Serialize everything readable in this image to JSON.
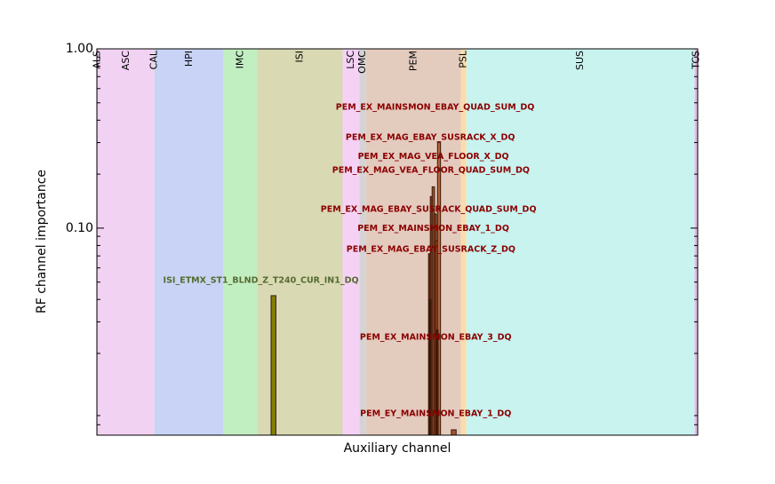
{
  "chart_data": {
    "type": "bar",
    "title": "",
    "xlabel": "Auxiliary channel",
    "ylabel": "RF channel importance",
    "y_scale": "log",
    "ylim": [
      0.007,
      1.0
    ],
    "yticks": [
      {
        "value": 1.0,
        "label": "1.00"
      },
      {
        "value": 0.1,
        "label": "0.10"
      }
    ],
    "xlim": [
      0,
      1000
    ],
    "subsystems": [
      {
        "label": "ALS",
        "start": 0,
        "end": 2,
        "color": "#e6b8e6"
      },
      {
        "label": "ASC",
        "start": 2,
        "end": 95,
        "color": "#f2d2f2"
      },
      {
        "label": "CAL",
        "start": 95,
        "end": 96,
        "color": "#dddddd"
      },
      {
        "label": "HPI",
        "start": 96,
        "end": 211,
        "color": "#c8d3f5"
      },
      {
        "label": "IMC",
        "start": 211,
        "end": 267,
        "color": "#c2efc2"
      },
      {
        "label": "ISI",
        "start": 267,
        "end": 409,
        "color": "#d9d9b3"
      },
      {
        "label": "LSC",
        "start": 409,
        "end": 437,
        "color": "#f5d2f5"
      },
      {
        "label": "OMC",
        "start": 437,
        "end": 448,
        "color": "#d4d4d4"
      },
      {
        "label": "PEM",
        "start": 448,
        "end": 606,
        "color": "#e3cbbe"
      },
      {
        "label": "PSL",
        "start": 606,
        "end": 615,
        "color": "#fbdcaa"
      },
      {
        "label": "SUS",
        "start": 615,
        "end": 995,
        "color": "#c8f3ef"
      },
      {
        "label": "TCS",
        "start": 995,
        "end": 1000,
        "color": "#e6b8e6"
      }
    ],
    "bars": [
      {
        "x": 290,
        "width": 8,
        "value": 0.042,
        "color": "#808000"
      },
      {
        "x": 552,
        "width": 4,
        "value": 0.072,
        "color": "#6b2a10"
      },
      {
        "x": 555,
        "width": 4,
        "value": 0.15,
        "color": "#8b3a1a"
      },
      {
        "x": 558,
        "width": 4,
        "value": 0.17,
        "color": "#a0522d"
      },
      {
        "x": 561,
        "width": 4,
        "value": 0.12,
        "color": "#8b3a1a"
      },
      {
        "x": 564,
        "width": 4,
        "value": 0.085,
        "color": "#a0522d"
      },
      {
        "x": 567,
        "width": 5,
        "value": 0.3,
        "color": "#b5663a"
      },
      {
        "x": 565,
        "width": 3,
        "value": 0.027,
        "color": "#4a1a08"
      },
      {
        "x": 553,
        "width": 3,
        "value": 0.04,
        "color": "#3a1405"
      },
      {
        "x": 590,
        "width": 8,
        "value": 0.0075,
        "color": "#a0522d"
      }
    ],
    "annotations": [
      {
        "text": "PEM_EX_MAINSMON_EBAY_QUAD_SUM_DQ",
        "x": 563,
        "y": 0.47,
        "color": "#8b0000"
      },
      {
        "text": "PEM_EX_MAG_EBAY_SUSRACK_X_DQ",
        "x": 555,
        "y": 0.32,
        "color": "#8b0000"
      },
      {
        "text": "PEM_EX_MAG_VEA_FLOOR_X_DQ",
        "x": 560,
        "y": 0.25,
        "color": "#8b0000"
      },
      {
        "text": "PEM_EX_MAG_VEA_FLOOR_QUAD_SUM_DQ",
        "x": 556,
        "y": 0.21,
        "color": "#8b0000"
      },
      {
        "text": "PEM_EX_MAG_EBAY_SUSRACK_QUAD_SUM_DQ",
        "x": 552,
        "y": 0.127,
        "color": "#8b0000"
      },
      {
        "text": "PEM_EX_MAINSMON_EBAY_1_DQ",
        "x": 560,
        "y": 0.099,
        "color": "#8b0000"
      },
      {
        "text": "PEM_EX_MAG_EBAY_SUSRACK_Z_DQ",
        "x": 556,
        "y": 0.076,
        "color": "#8b0000"
      },
      {
        "text": "ISI_ETMX_ST1_BLND_Z_T240_CUR_IN1_DQ",
        "x": 273,
        "y": 0.051,
        "color": "#556b2f"
      },
      {
        "text": "PEM_EX_MAINSMON_EBAY_3_DQ",
        "x": 564,
        "y": 0.0245,
        "color": "#8b0000"
      },
      {
        "text": "PEM_EY_MAINSMON_EBAY_1_DQ",
        "x": 564,
        "y": 0.0092,
        "color": "#8b0000"
      }
    ]
  }
}
